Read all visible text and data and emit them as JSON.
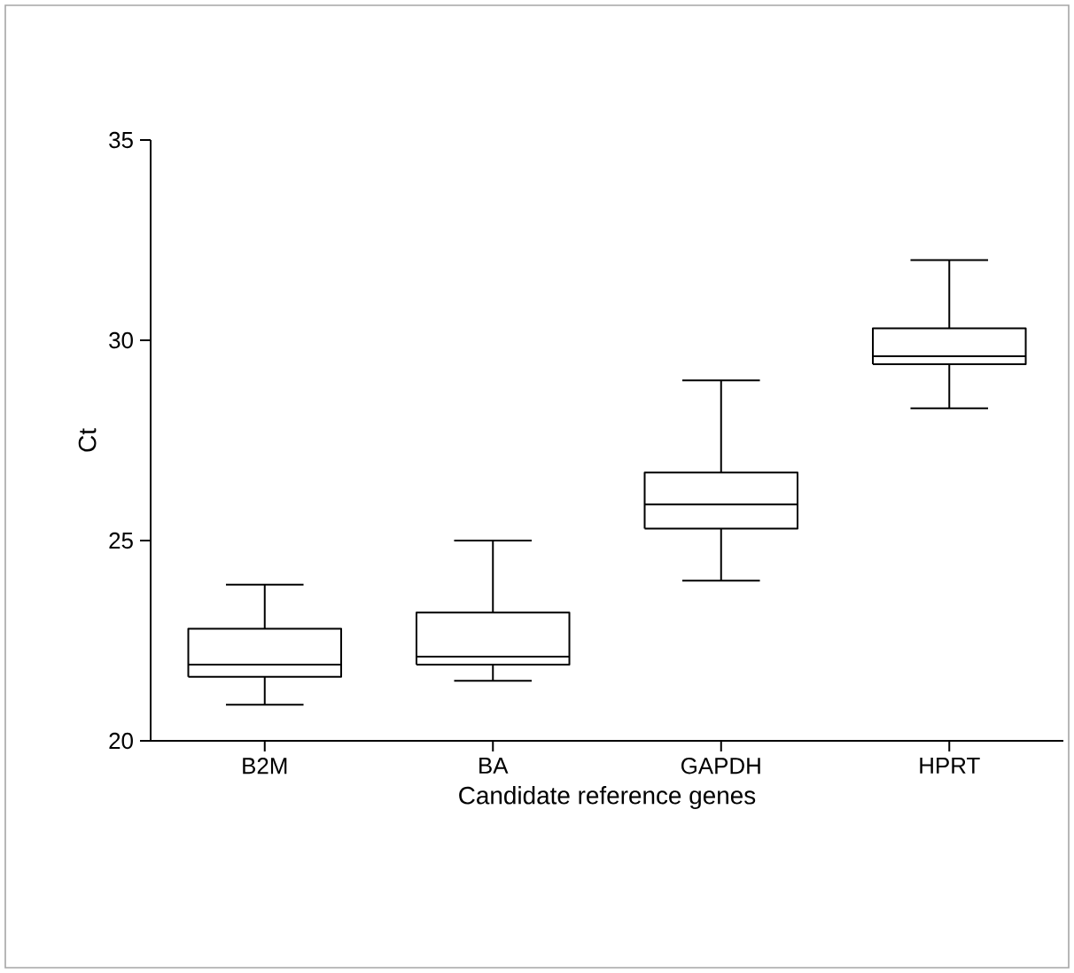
{
  "chart_data": {
    "type": "box",
    "xlabel": "Candidate reference genes",
    "ylabel": "Ct",
    "categories": [
      "B2M",
      "BA",
      "GAPDH",
      "HPRT"
    ],
    "boxes": [
      {
        "low": 20.9,
        "q1": 21.6,
        "median": 21.9,
        "q3": 22.8,
        "high": 23.9
      },
      {
        "low": 21.5,
        "q1": 21.9,
        "median": 22.1,
        "q3": 23.2,
        "high": 25.0
      },
      {
        "low": 24.0,
        "q1": 25.3,
        "median": 25.9,
        "q3": 26.7,
        "high": 29.0
      },
      {
        "low": 28.3,
        "q1": 29.4,
        "median": 29.6,
        "q3": 30.3,
        "high": 32.0
      }
    ],
    "ylim": [
      20,
      35
    ],
    "yticks": [
      20,
      25,
      30,
      35
    ],
    "grid": false
  }
}
